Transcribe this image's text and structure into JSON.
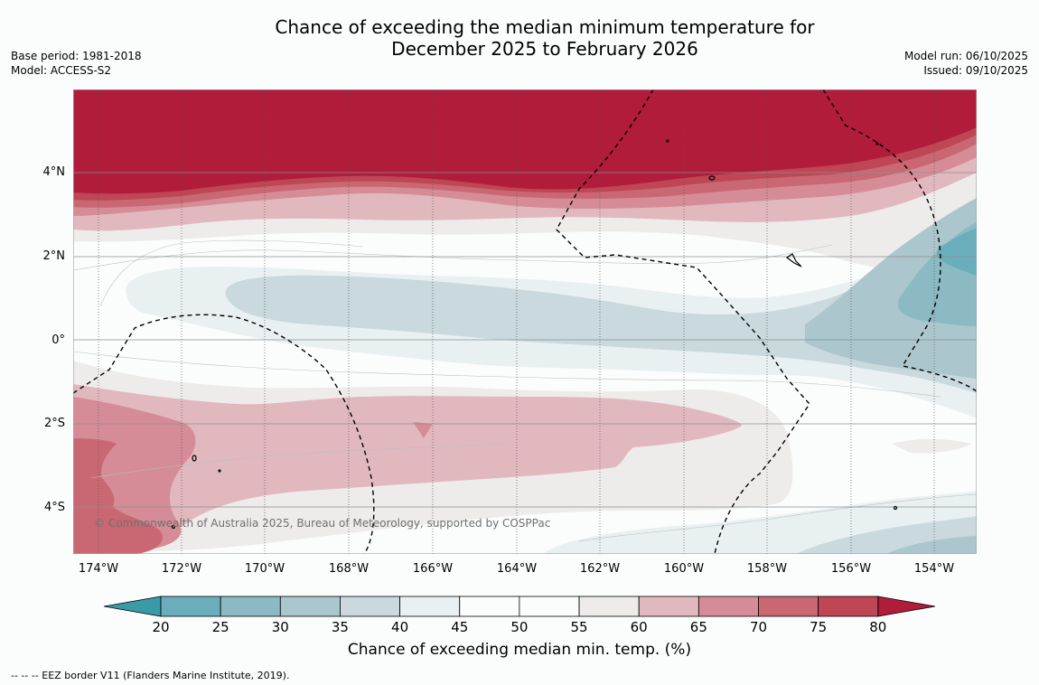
{
  "title": {
    "line1": "Chance of exceeding the median minimum temperature for",
    "line2": "December 2025 to February 2026"
  },
  "meta_left": {
    "base_period": "Base period: 1981-2018",
    "model": "Model: ACCESS-S2"
  },
  "meta_right": {
    "model_run": "Model run: 06/10/2025",
    "issued": "Issued: 09/10/2025"
  },
  "map": {
    "latitude_labels": [
      "4°N",
      "2°N",
      "0°",
      "2°S",
      "4°S"
    ],
    "longitude_labels": [
      "174°W",
      "172°W",
      "170°W",
      "168°W",
      "166°W",
      "164°W",
      "162°W",
      "160°W",
      "158°W",
      "156°W",
      "154°W"
    ],
    "copyright": "© Commonwealth of Australia 2025, Bureau of Meteorology, supported by COSPPac"
  },
  "colorbar": {
    "label": "Chance of exceeding median min. temp. (%)",
    "ticks": [
      "20",
      "25",
      "30",
      "35",
      "40",
      "45",
      "50",
      "55",
      "60",
      "65",
      "70",
      "75",
      "80"
    ],
    "under_color": "#3a9aa8",
    "over_color": "#b11c3a",
    "colors": [
      "#6aaebb",
      "#8bb9c4",
      "#abc7cd",
      "#c9d9dd",
      "#e9f0f2",
      "#fbfdfc",
      "#fbfdfc",
      "#eeeceb",
      "#e2b8bf",
      "#d68c97",
      "#c96872",
      "#be4655"
    ]
  },
  "legend_note": "--  --  -- EEZ border V11 (Flanders Marine Institute, 2019)."
}
